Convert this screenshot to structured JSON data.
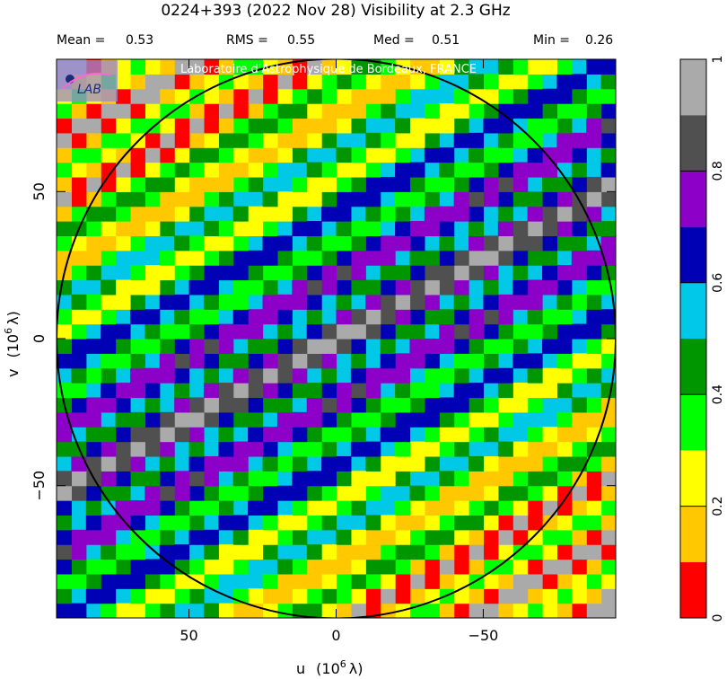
{
  "chart_data": {
    "type": "heatmap",
    "title": "0224+393   (2022 Nov 28)   Visibility at  2.3 GHz",
    "stats": [
      {
        "label": "Mean =",
        "value": "0.53"
      },
      {
        "label": "RMS =",
        "value": "0.55"
      },
      {
        "label": "Med =",
        "value": "0.51"
      },
      {
        "label": "Min =",
        "value": "0.26"
      }
    ],
    "credit": "Laboratoire d'Astrophysique de Bordeaux, FRANCE",
    "logo_text": "LAB",
    "xlabel": "u",
    "xlabel_unit": "(10",
    "xlabel_exp": "6",
    "xlabel_sym": "λ)",
    "ylabel": "v",
    "ylabel_unit": "(10",
    "ylabel_exp": "6",
    "ylabel_sym": "λ)",
    "xlim": [
      95,
      -95
    ],
    "ylim": [
      -95,
      95
    ],
    "xticks": [
      {
        "value": 50,
        "label": "50"
      },
      {
        "value": 0,
        "label": "0"
      },
      {
        "value": -50,
        "label": "−50"
      }
    ],
    "yticks": [
      {
        "value": -50,
        "label": "−50"
      },
      {
        "value": 0,
        "label": "0"
      },
      {
        "value": 50,
        "label": "50"
      }
    ],
    "circle_radius": 95,
    "ridge_slope": -0.55,
    "band_period": 19,
    "colorbar": {
      "range": [
        0,
        1
      ],
      "levels": [
        {
          "from": 0.0,
          "to": 0.1,
          "color": "#ff0000"
        },
        {
          "from": 0.1,
          "to": 0.2,
          "color": "#ffc800"
        },
        {
          "from": 0.2,
          "to": 0.3,
          "color": "#ffff00"
        },
        {
          "from": 0.3,
          "to": 0.4,
          "color": "#00ff00"
        },
        {
          "from": 0.4,
          "to": 0.5,
          "color": "#009600"
        },
        {
          "from": 0.5,
          "to": 0.6,
          "color": "#00c8e6"
        },
        {
          "from": 0.6,
          "to": 0.7,
          "color": "#0000b4"
        },
        {
          "from": 0.7,
          "to": 0.8,
          "color": "#8c00c8"
        },
        {
          "from": 0.8,
          "to": 0.9,
          "color": "#505050"
        },
        {
          "from": 0.9,
          "to": 1.0,
          "color": "#aaaaaa"
        }
      ],
      "ticks": [
        {
          "value": 0,
          "label": "0"
        },
        {
          "value": 0.2,
          "label": "0.2"
        },
        {
          "value": 0.4,
          "label": "0.4"
        },
        {
          "value": 0.6,
          "label": "0.6"
        },
        {
          "value": 0.8,
          "label": "0.8"
        },
        {
          "value": 1,
          "label": "1"
        }
      ]
    }
  }
}
